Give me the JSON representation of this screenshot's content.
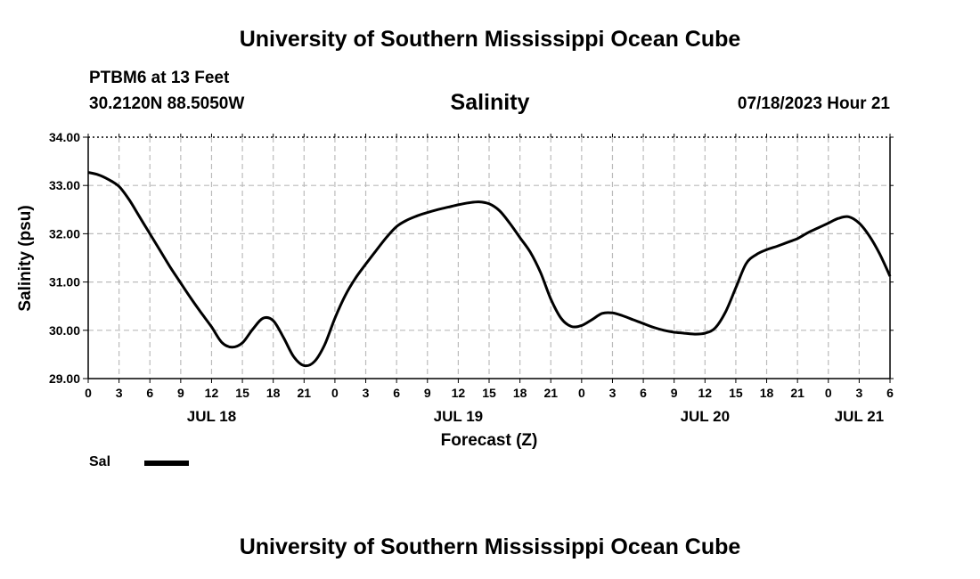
{
  "header": {
    "title": "University of Southern Mississippi Ocean Cube",
    "station": "PTBM6 at 13 Feet",
    "coords": "30.2120N  88.5050W",
    "variable": "Salinity",
    "datetime": "07/18/2023 Hour 21"
  },
  "footer": {
    "title": "University of Southern Mississippi Ocean Cube"
  },
  "legend": {
    "label": "Sal"
  },
  "chart_data": {
    "type": "line",
    "title": "Salinity",
    "xlabel": "Forecast (Z)",
    "ylabel": "Salinity (psu)",
    "xlim": [
      0,
      78
    ],
    "ylim": [
      29.0,
      34.0
    ],
    "grid": true,
    "x_tick_labels": [
      "0",
      "3",
      "6",
      "9",
      "12",
      "15",
      "18",
      "21",
      "0",
      "3",
      "6",
      "9",
      "12",
      "15",
      "18",
      "21",
      "0",
      "3",
      "6",
      "9",
      "12",
      "15",
      "18",
      "21",
      "0",
      "3",
      "6"
    ],
    "y_ticks": [
      "29.00",
      "30.00",
      "31.00",
      "32.00",
      "33.00",
      "34.00"
    ],
    "day_labels": [
      {
        "label": "JUL 18",
        "hour": 12
      },
      {
        "label": "JUL 19",
        "hour": 36
      },
      {
        "label": "JUL 20",
        "hour": 60
      },
      {
        "label": "JUL 21",
        "hour": 75
      }
    ],
    "series": [
      {
        "name": "Sal",
        "x": [
          0,
          1,
          2,
          3,
          4,
          5,
          6,
          7,
          8,
          9,
          10,
          11,
          12,
          13,
          14,
          15,
          16,
          17,
          18,
          19,
          20,
          21,
          22,
          23,
          24,
          25,
          26,
          27,
          28,
          29,
          30,
          31,
          32,
          33,
          34,
          35,
          36,
          37,
          38,
          39,
          40,
          41,
          42,
          43,
          44,
          45,
          46,
          47,
          48,
          49,
          50,
          51,
          52,
          53,
          54,
          55,
          56,
          57,
          58,
          59,
          60,
          61,
          62,
          63,
          64,
          65,
          66,
          67,
          68,
          69,
          70,
          71,
          72,
          73,
          74,
          75,
          76,
          77,
          78
        ],
        "values": [
          33.27,
          33.22,
          33.12,
          32.98,
          32.7,
          32.35,
          32.0,
          31.65,
          31.3,
          30.98,
          30.66,
          30.36,
          30.07,
          29.75,
          29.65,
          29.74,
          30.02,
          30.25,
          30.2,
          29.85,
          29.45,
          29.27,
          29.35,
          29.7,
          30.25,
          30.72,
          31.08,
          31.37,
          31.65,
          31.92,
          32.15,
          32.28,
          32.37,
          32.44,
          32.5,
          32.55,
          32.6,
          32.64,
          32.66,
          32.62,
          32.48,
          32.22,
          31.92,
          31.62,
          31.2,
          30.65,
          30.25,
          30.08,
          30.1,
          30.22,
          30.35,
          30.36,
          30.3,
          30.22,
          30.14,
          30.06,
          30.0,
          29.96,
          29.94,
          29.92,
          29.94,
          30.05,
          30.38,
          30.88,
          31.38,
          31.57,
          31.67,
          31.74,
          31.82,
          31.9,
          32.02,
          32.12,
          32.22,
          32.32,
          32.35,
          32.22,
          31.95,
          31.58,
          31.12
        ]
      }
    ]
  }
}
